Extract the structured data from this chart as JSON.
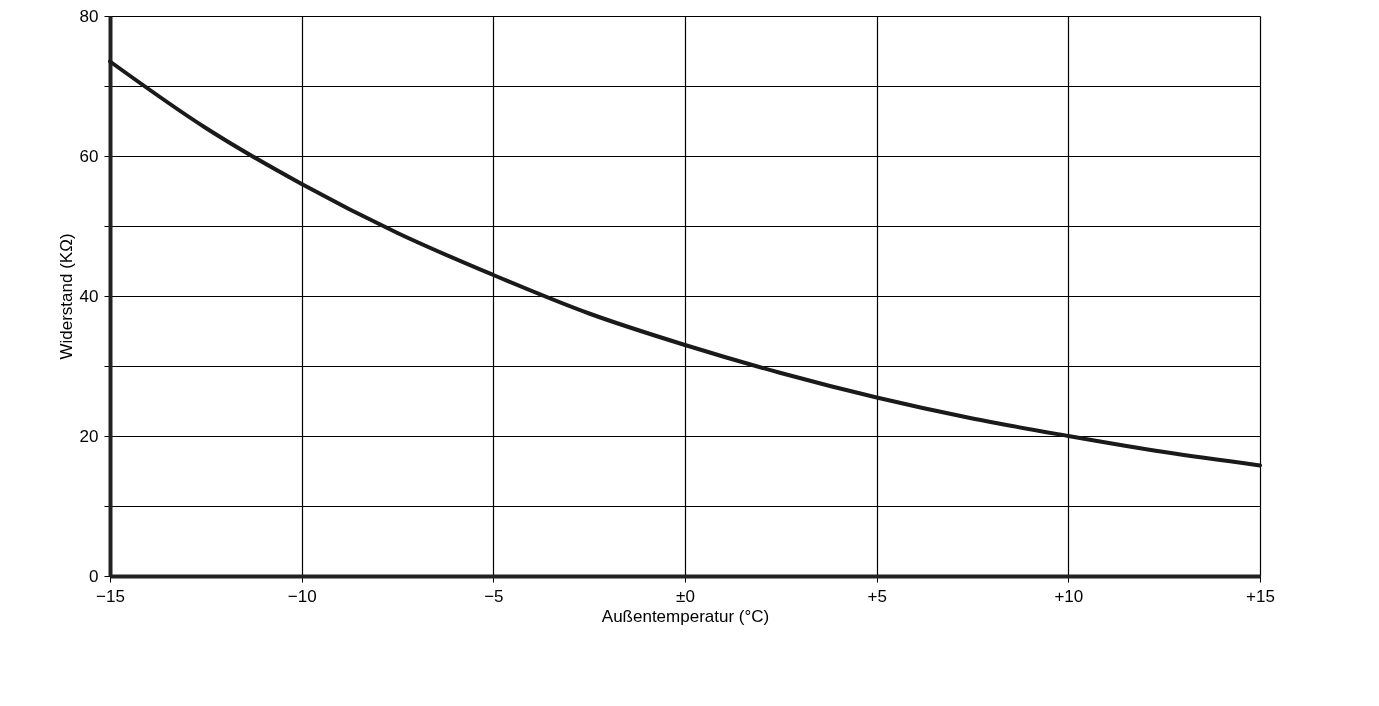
{
  "chart_data": {
    "type": "line",
    "xlabel": "Außentemperatur (°C)",
    "ylabel": "Widerstand (KΩ)",
    "x": [
      -15,
      -12.5,
      -10,
      -7.5,
      -5,
      -2.5,
      0,
      2.5,
      5,
      7.5,
      10,
      12.5,
      15
    ],
    "series": [
      {
        "color": "#1a1a1a",
        "values": [
          73.5,
          64,
          56,
          49,
          43,
          37.5,
          33,
          29,
          25.5,
          22.5,
          20,
          17.7,
          15.8
        ]
      }
    ],
    "xlim": [
      -15,
      15
    ],
    "xticks": [
      {
        "value": -15,
        "label": "−15"
      },
      {
        "value": -10,
        "label": "−10"
      },
      {
        "value": -5,
        "label": "−5"
      },
      {
        "value": 0,
        "label": "±0"
      },
      {
        "value": 5,
        "label": "+5"
      },
      {
        "value": 10,
        "label": "+10"
      },
      {
        "value": 15,
        "label": "+15"
      }
    ],
    "ylim": [
      0,
      80
    ],
    "yticks": [
      0,
      {
        "value": 10,
        "label": null
      },
      20,
      {
        "value": 30,
        "label": null
      },
      40,
      {
        "value": 50,
        "label": null
      },
      60,
      {
        "value": 70,
        "label": null
      },
      80
    ],
    "grid": true,
    "marker": "none",
    "line_style": "solid"
  }
}
